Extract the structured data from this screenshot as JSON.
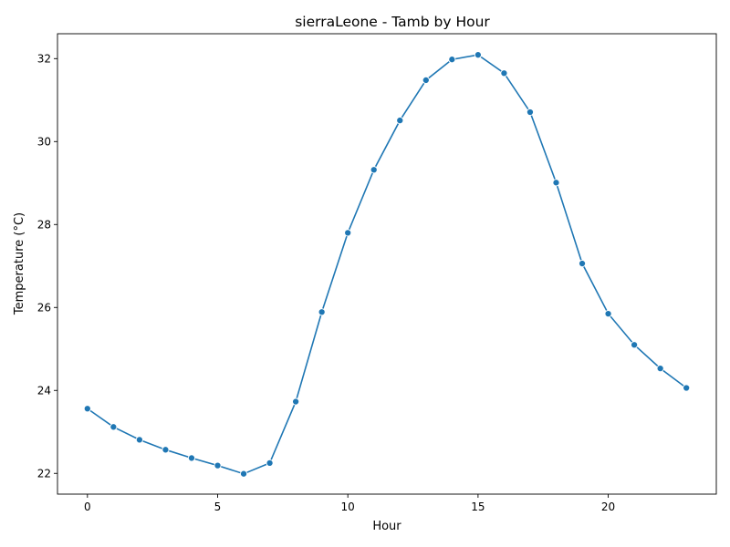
{
  "chart_data": {
    "type": "line",
    "title": "sierraLeone - Tamb by Hour",
    "xlabel": "Hour",
    "ylabel": "Temperature (°C)",
    "xlim": [
      -1.15,
      24.15
    ],
    "ylim": [
      21.5,
      32.6
    ],
    "xticks": [
      0,
      5,
      10,
      15,
      20
    ],
    "yticks": [
      22,
      24,
      26,
      28,
      30,
      32
    ],
    "grid": false,
    "line_color": "#1f77b4",
    "marker": "circle",
    "series": [
      {
        "x": [
          0,
          1,
          2,
          3,
          4,
          5,
          6,
          7,
          8,
          9,
          10,
          11,
          12,
          13,
          14,
          15,
          16,
          17,
          18,
          19,
          20,
          21,
          22,
          23
        ],
        "values": [
          23.56,
          23.12,
          22.81,
          22.57,
          22.37,
          22.19,
          21.99,
          22.25,
          23.73,
          25.89,
          27.8,
          29.32,
          30.51,
          31.48,
          31.98,
          32.09,
          31.65,
          30.71,
          29.01,
          27.06,
          25.85,
          25.1,
          24.53,
          24.06
        ]
      }
    ]
  }
}
